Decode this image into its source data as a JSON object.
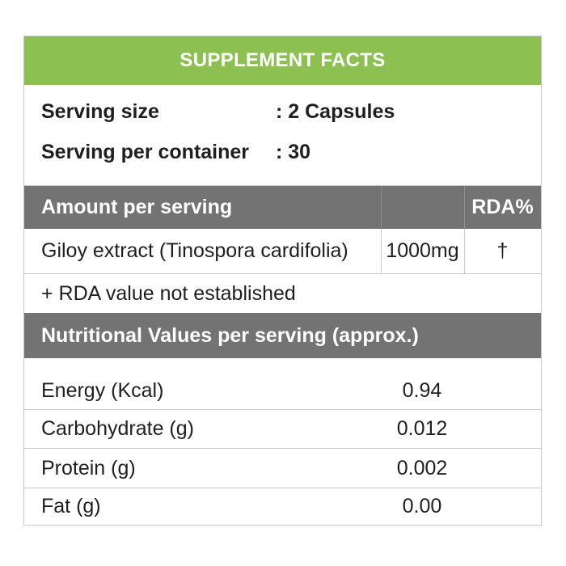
{
  "title": "SUPPLEMENT FACTS",
  "serving": {
    "size_label": "Serving size",
    "size_value": ": 2 Capsules",
    "per_container_label": "Serving per container",
    "per_container_value": ": 30"
  },
  "amount_header": {
    "label": "Amount per serving",
    "rda_header": "RDA%"
  },
  "ingredients": [
    {
      "name": "Giloy extract (Tinospora cardifolia)",
      "amount": "1000mg",
      "rda": "†"
    }
  ],
  "rda_note": "+ RDA value not established",
  "nutrition_header": "Nutritional Values per serving (approx.)",
  "nutrition": [
    {
      "name": "Energy (Kcal)",
      "value": "0.94"
    },
    {
      "name": "Carbohydrate (g)",
      "value": "0.012"
    },
    {
      "name": "Protein (g)",
      "value": "0.002"
    },
    {
      "name": "Fat (g)",
      "value": "0.00"
    }
  ],
  "colors": {
    "title_bar": "#8cc152",
    "header_bar": "#737373",
    "border": "#c9c9c9"
  }
}
